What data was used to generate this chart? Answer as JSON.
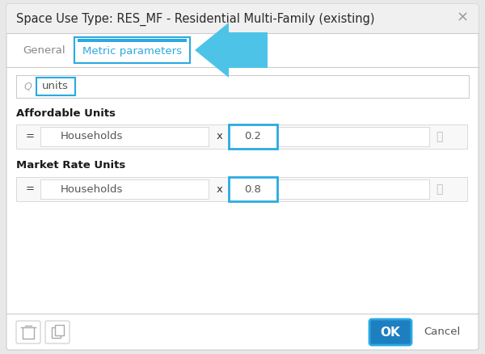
{
  "title": "Space Use Type: RES_MF - Residential Multi-Family (existing)",
  "close_x": "×",
  "tab_general": "General",
  "tab_metric": "Metric parameters",
  "search_text": "units",
  "section1_label": "Affordable Units",
  "section1_eq": "=",
  "section1_field": "Households",
  "section1_x": "x",
  "section1_value": "0.2",
  "section2_label": "Market Rate Units",
  "section2_eq": "=",
  "section2_field": "Households",
  "section2_x": "x",
  "section2_value": "0.8",
  "btn_ok": "OK",
  "btn_cancel": "Cancel",
  "bg_dialog": "#f0f0f0",
  "bg_white": "#ffffff",
  "color_title": "#2a2a2a",
  "color_tab_active": "#29aae2",
  "color_tab_inactive": "#888888",
  "color_border": "#cccccc",
  "color_highlight": "#29aae2",
  "color_ok_bg": "#1e7fc0",
  "color_ok_text": "#ffffff",
  "color_section": "#1a1a1a",
  "color_text": "#555555",
  "color_arrow": "#4dc3e8",
  "color_close": "#999999",
  "color_row_bg": "#f8f8f8"
}
